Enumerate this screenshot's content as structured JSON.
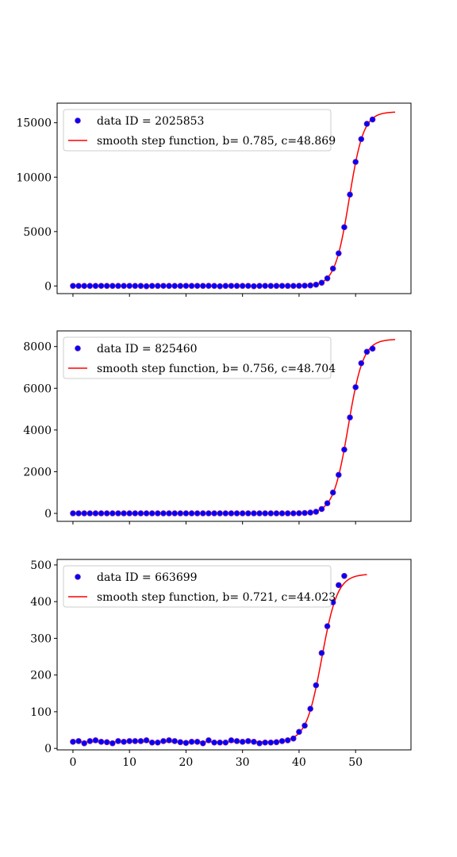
{
  "colors": {
    "points": "#0000ff",
    "point_edge": "#7a1fa0",
    "fit": "#ff0000"
  },
  "chart_data": [
    {
      "type": "scatter",
      "title": "",
      "xlabel": "",
      "ylabel": "",
      "xlim": [
        -2.8,
        59.8
      ],
      "ylim": [
        -700,
        16800
      ],
      "xticks": [
        0,
        10,
        20,
        30,
        40,
        50
      ],
      "xticklabels": [],
      "yticks": [
        0,
        5000,
        10000,
        15000
      ],
      "yticklabels": [
        "0",
        "5000",
        "10000",
        "15000"
      ],
      "legend_position": "upper-left",
      "grid": false,
      "legend": {
        "points_label": "data ID = 2025853",
        "fit_label": "smooth step function, b= 0.785, c=48.869"
      },
      "fit": {
        "L": 16000,
        "b": 0.785,
        "c": 48.869,
        "x_range": [
          0,
          57
        ]
      },
      "series": [
        {
          "kind": "points",
          "x": [
            0,
            1,
            2,
            3,
            4,
            5,
            6,
            7,
            8,
            9,
            10,
            11,
            12,
            13,
            14,
            15,
            16,
            17,
            18,
            19,
            20,
            21,
            22,
            23,
            24,
            25,
            26,
            27,
            28,
            29,
            30,
            31,
            32,
            33,
            34,
            35,
            36,
            37,
            38,
            39,
            40,
            41,
            42,
            43,
            44,
            45,
            46,
            47,
            48,
            49,
            50,
            51,
            52,
            53
          ],
          "y": [
            10,
            10,
            5,
            10,
            8,
            12,
            10,
            8,
            10,
            10,
            12,
            10,
            8,
            -20,
            10,
            10,
            12,
            8,
            10,
            10,
            12,
            10,
            12,
            10,
            15,
            10,
            -20,
            10,
            12,
            10,
            10,
            12,
            -20,
            10,
            12,
            10,
            10,
            12,
            10,
            10,
            20,
            30,
            50,
            120,
            300,
            700,
            1600,
            3000,
            5400,
            8400,
            11400,
            13500,
            14900,
            15300
          ]
        }
      ]
    },
    {
      "type": "scatter",
      "title": "",
      "xlabel": "",
      "ylabel": "",
      "xlim": [
        -2.8,
        59.8
      ],
      "ylim": [
        -380,
        8750
      ],
      "xticks": [
        0,
        10,
        20,
        30,
        40,
        50
      ],
      "xticklabels": [],
      "yticks": [
        0,
        2000,
        4000,
        6000,
        8000
      ],
      "yticklabels": [
        "0",
        "2000",
        "4000",
        "6000",
        "8000"
      ],
      "legend_position": "upper-left",
      "grid": false,
      "legend": {
        "points_label": "data ID = 825460",
        "fit_label": "smooth step function, b= 0.756, c=48.704"
      },
      "fit": {
        "L": 8350,
        "b": 0.756,
        "c": 48.704,
        "x_range": [
          0,
          57
        ]
      },
      "series": [
        {
          "kind": "points",
          "x": [
            0,
            1,
            2,
            3,
            4,
            5,
            6,
            7,
            8,
            9,
            10,
            11,
            12,
            13,
            14,
            15,
            16,
            17,
            18,
            19,
            20,
            21,
            22,
            23,
            24,
            25,
            26,
            27,
            28,
            29,
            30,
            31,
            32,
            33,
            34,
            35,
            36,
            37,
            38,
            39,
            40,
            41,
            42,
            43,
            44,
            45,
            46,
            47,
            48,
            49,
            50,
            51,
            52,
            53
          ],
          "y": [
            5,
            5,
            5,
            5,
            5,
            5,
            5,
            5,
            5,
            5,
            5,
            5,
            5,
            5,
            5,
            5,
            5,
            5,
            5,
            5,
            5,
            5,
            5,
            5,
            5,
            5,
            5,
            5,
            5,
            5,
            5,
            5,
            5,
            5,
            5,
            5,
            5,
            5,
            5,
            5,
            10,
            20,
            40,
            80,
            210,
            490,
            1000,
            1850,
            3060,
            4600,
            6050,
            7200,
            7750,
            7900
          ]
        }
      ]
    },
    {
      "type": "scatter",
      "title": "",
      "xlabel": "",
      "ylabel": "",
      "xlim": [
        -2.8,
        59.8
      ],
      "ylim": [
        -4,
        515
      ],
      "xticks": [
        0,
        10,
        20,
        30,
        40,
        50
      ],
      "xticklabels": [
        "0",
        "10",
        "20",
        "30",
        "40",
        "50"
      ],
      "yticks": [
        0,
        100,
        200,
        300,
        400,
        500
      ],
      "yticklabels": [
        "0",
        "100",
        "200",
        "300",
        "400",
        "500"
      ],
      "legend_position": "upper-left",
      "grid": false,
      "legend": {
        "points_label": "data ID = 663699",
        "fit_label": "smooth step function, b= 0.721, c=44.023"
      },
      "fit": {
        "L": 475,
        "base": 18,
        "b": 0.721,
        "c": 44.023,
        "x_range": [
          0,
          52
        ]
      },
      "series": [
        {
          "kind": "points",
          "x": [
            0,
            1,
            2,
            3,
            4,
            5,
            6,
            7,
            8,
            9,
            10,
            11,
            12,
            13,
            14,
            15,
            16,
            17,
            18,
            19,
            20,
            21,
            22,
            23,
            24,
            25,
            26,
            27,
            28,
            29,
            30,
            31,
            32,
            33,
            34,
            35,
            36,
            37,
            38,
            39,
            40,
            41,
            42,
            43,
            44,
            45,
            46,
            47,
            48
          ],
          "y": [
            18,
            20,
            14,
            20,
            22,
            18,
            17,
            14,
            20,
            18,
            20,
            20,
            20,
            22,
            16,
            16,
            20,
            22,
            20,
            17,
            15,
            18,
            18,
            14,
            22,
            16,
            16,
            16,
            22,
            20,
            18,
            20,
            18,
            14,
            16,
            16,
            17,
            20,
            22,
            27,
            45,
            62,
            108,
            172,
            260,
            333,
            398,
            445,
            470
          ]
        }
      ]
    }
  ]
}
